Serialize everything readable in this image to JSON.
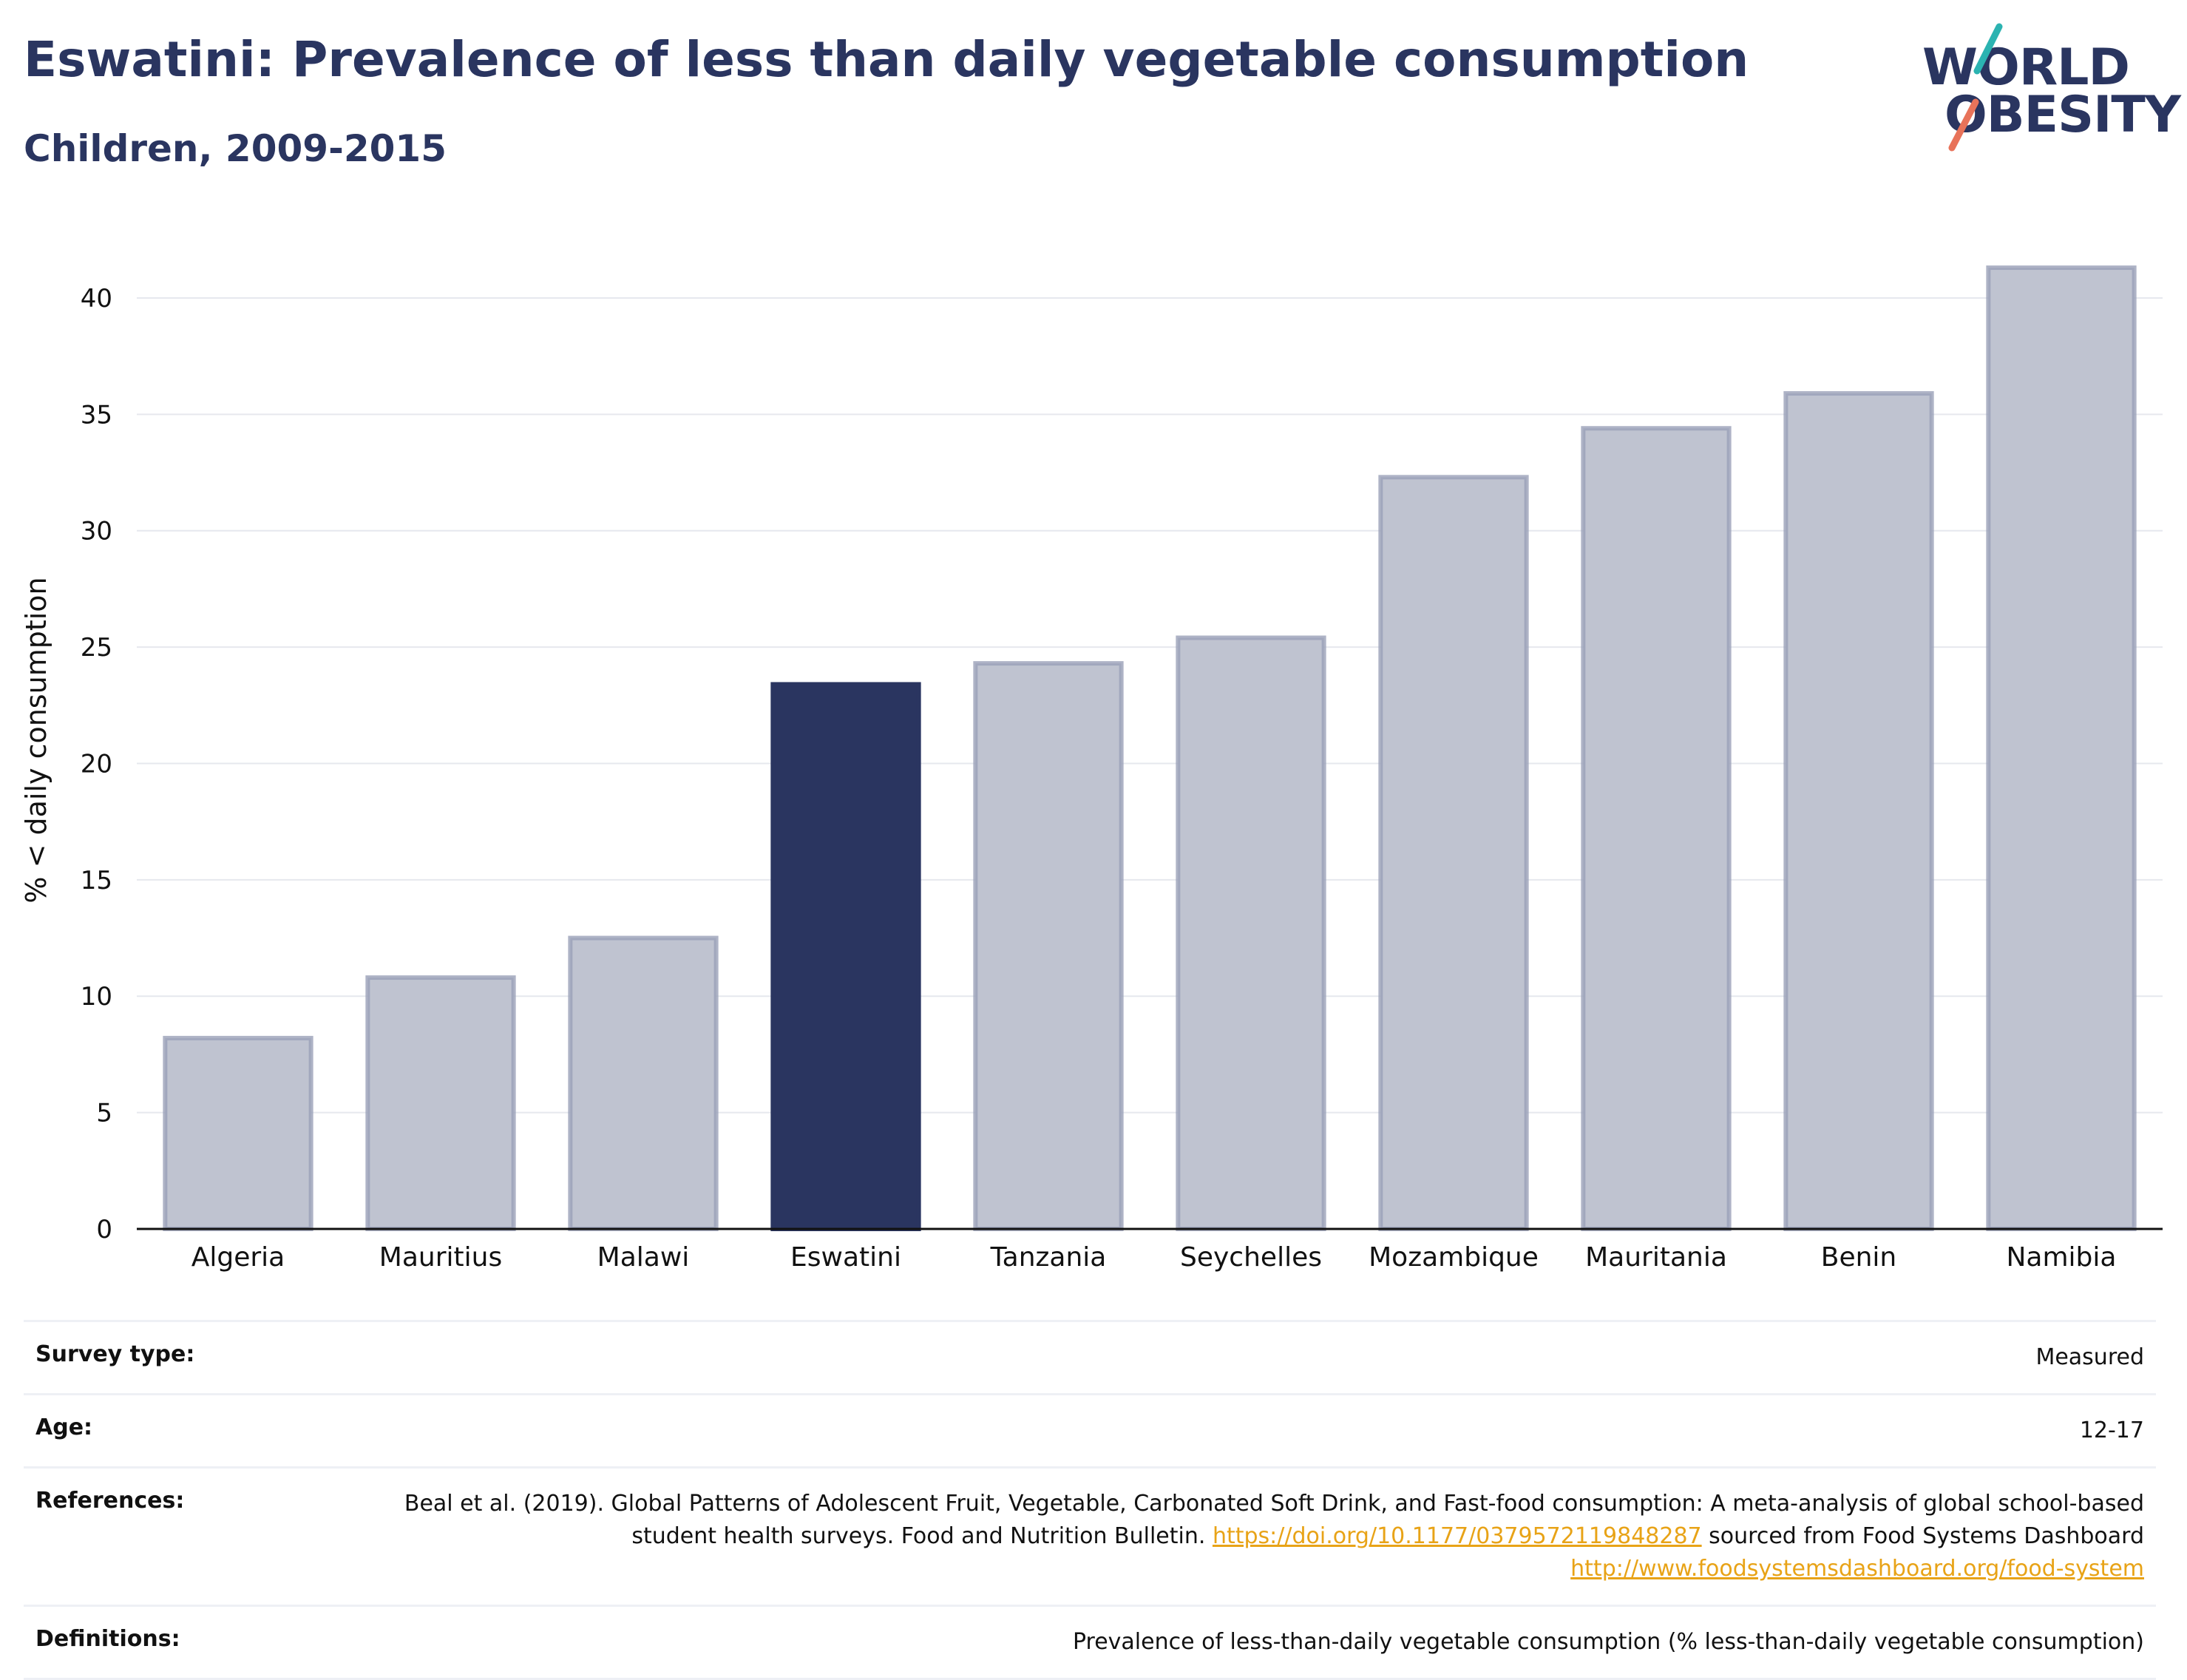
{
  "header": {
    "title": "Eswatini: Prevalence of less than daily vegetable consumption",
    "subtitle": "Children, 2009-2015"
  },
  "logo": {
    "line1": "WORLD",
    "line2": "OBESITY",
    "accent_teal": "#2bb3b1",
    "accent_coral": "#e8735a"
  },
  "colors": {
    "highlight": "#2a3560",
    "bar": "#bfc3d0",
    "bar_outline": "#9aa0b8",
    "link": "#e8a317"
  },
  "chart_data": {
    "type": "bar",
    "categories": [
      "Algeria",
      "Mauritius",
      "Malawi",
      "Eswatini",
      "Tanzania",
      "Seychelles",
      "Mozambique",
      "Mauritania",
      "Benin",
      "Namibia"
    ],
    "values": [
      8.2,
      10.8,
      12.5,
      23.4,
      24.3,
      25.4,
      32.3,
      34.4,
      35.9,
      41.3
    ],
    "highlight": "Eswatini",
    "ylabel": "% < daily consumption",
    "xlabel": "",
    "ylim": [
      0,
      42
    ],
    "yticks": [
      0,
      5,
      10,
      15,
      20,
      25,
      30,
      35,
      40
    ],
    "grid": true
  },
  "details": [
    {
      "label": "Survey type:",
      "value": "Measured"
    },
    {
      "label": "Age:",
      "value": "12-17"
    },
    {
      "label": "References:",
      "text1": "Beal et al. (2019). Global Patterns of Adolescent Fruit, Vegetable, Carbonated Soft Drink, and Fast-food consumption: A meta-analysis of global school-based student health surveys. Food and Nutrition Bulletin.",
      "link1": "https://doi.org/10.1177/0379572119848287",
      "text2": "sourced from Food Systems Dashboard",
      "link2": "http://www.foodsystemsdashboard.org/food-system"
    },
    {
      "label": "Definitions:",
      "value": "Prevalence of less-than-daily vegetable consumption (% less-than-daily vegetable consumption)"
    }
  ]
}
